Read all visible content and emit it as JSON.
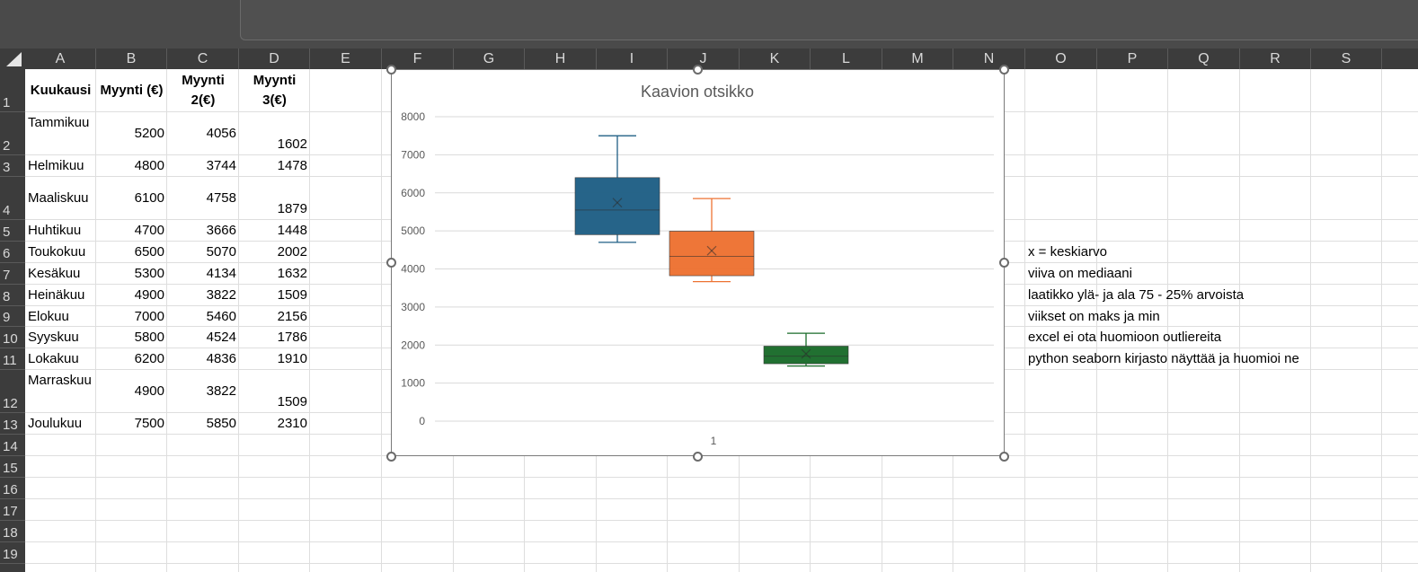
{
  "columns": [
    "A",
    "B",
    "C",
    "D",
    "E",
    "F",
    "G",
    "H",
    "I",
    "J",
    "K",
    "L",
    "M",
    "N",
    "O",
    "P",
    "Q",
    "R",
    "S"
  ],
  "rows": [
    "1",
    "2",
    "3",
    "4",
    "5",
    "6",
    "7",
    "8",
    "9",
    "10",
    "11",
    "12",
    "13",
    "14",
    "15",
    "16",
    "17",
    "18",
    "19"
  ],
  "table": {
    "headers": [
      "Kuukausi",
      "Myynti (€)",
      "Myynti 2(€)",
      "Myynti 3(€)"
    ],
    "data": [
      [
        "Tammikuu",
        "5200",
        "4056",
        "1602"
      ],
      [
        "Helmikuu",
        "4800",
        "3744",
        "1478"
      ],
      [
        "Maaliskuu",
        "6100",
        "4758",
        "1879"
      ],
      [
        "Huhtikuu",
        "4700",
        "3666",
        "1448"
      ],
      [
        "Toukokuu",
        "6500",
        "5070",
        "2002"
      ],
      [
        "Kesäkuu",
        "5300",
        "4134",
        "1632"
      ],
      [
        "Heinäkuu",
        "4900",
        "3822",
        "1509"
      ],
      [
        "Elokuu",
        "7000",
        "5460",
        "2156"
      ],
      [
        "Syyskuu",
        "5800",
        "4524",
        "1786"
      ],
      [
        "Lokakuu",
        "6200",
        "4836",
        "1910"
      ],
      [
        "Marraskuu",
        "4900",
        "3822",
        "1509"
      ],
      [
        "Joulukuu",
        "7500",
        "5850",
        "2310"
      ]
    ]
  },
  "notes": [
    "x = keskiarvo",
    "viiva on mediaani",
    "laatikko ylä- ja ala 75 -  25% arvoista",
    "viikset on maks ja min",
    "excel ei ota huomioon outliereita",
    "python seaborn kirjasto näyttää ja huomioi ne"
  ],
  "chart_data": {
    "type": "box",
    "title": "Kaavion otsikko",
    "categories": [
      "1"
    ],
    "ylim": [
      0,
      8000
    ],
    "yticks": [
      0,
      1000,
      2000,
      3000,
      4000,
      5000,
      6000,
      7000,
      8000
    ],
    "grid": true,
    "series": [
      {
        "color": "#1f5f85",
        "min": 4700,
        "q1": 4900,
        "median": 5550,
        "q3": 6400,
        "max": 7500,
        "mean": 5741.67
      },
      {
        "color": "#ed7232",
        "min": 3666,
        "q1": 3822,
        "median": 4329,
        "q3": 4992,
        "max": 5850,
        "mean": 4478.5
      },
      {
        "color": "#1a6b2a",
        "min": 1448,
        "q1": 1509,
        "median": 1709,
        "q3": 1971,
        "max": 2310,
        "mean": 1768.42
      }
    ]
  }
}
